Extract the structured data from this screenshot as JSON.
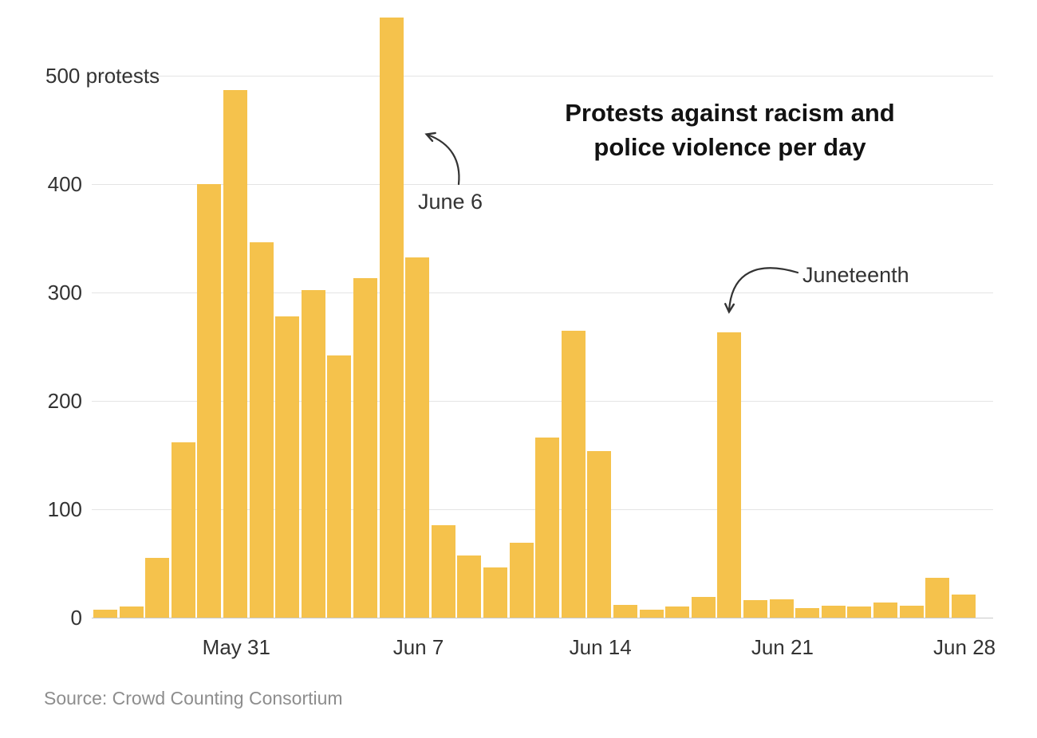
{
  "chart": {
    "title_line1": "Protests against racism and",
    "title_line2": "police violence per day"
  },
  "annotations": {
    "june6": "June 6",
    "juneteenth": "Juneteenth"
  },
  "source": "Source: Crowd Counting Consortium",
  "colors": {
    "bar": "#f5c24c",
    "gridline": "#e4e4e4",
    "baseline": "#c9c9c9",
    "text": "#333333",
    "title": "#121212",
    "source": "#8d8d8d"
  },
  "chart_data": {
    "type": "bar",
    "title": "Protests against racism and police violence per day",
    "xlabel": "",
    "ylabel": "protests",
    "x": [
      "May 26",
      "May 27",
      "May 28",
      "May 29",
      "May 30",
      "May 31",
      "Jun 1",
      "Jun 2",
      "Jun 3",
      "Jun 4",
      "Jun 5",
      "Jun 6",
      "Jun 7",
      "Jun 8",
      "Jun 9",
      "Jun 10",
      "Jun 11",
      "Jun 12",
      "Jun 13",
      "Jun 14",
      "Jun 15",
      "Jun 16",
      "Jun 17",
      "Jun 18",
      "Jun 19",
      "Jun 20",
      "Jun 21",
      "Jun 22",
      "Jun 23",
      "Jun 24",
      "Jun 25",
      "Jun 26",
      "Jun 27",
      "Jun 28"
    ],
    "values": [
      7,
      10,
      55,
      162,
      400,
      487,
      346,
      278,
      302,
      242,
      313,
      554,
      332,
      85,
      57,
      46,
      69,
      166,
      265,
      154,
      12,
      7,
      10,
      19,
      263,
      16,
      17,
      9,
      11,
      10,
      14,
      11,
      37,
      21
    ],
    "y_ticks": [
      0,
      100,
      200,
      300,
      400,
      500
    ],
    "y_tick_labels": [
      "0",
      "100",
      "200",
      "300",
      "400",
      "500 protests"
    ],
    "x_tick_labels": [
      {
        "index": 5,
        "label": "May 31"
      },
      {
        "index": 12,
        "label": "Jun 7"
      },
      {
        "index": 19,
        "label": "Jun 14"
      },
      {
        "index": 26,
        "label": "Jun 21"
      },
      {
        "index": 33,
        "label": "Jun 28"
      }
    ],
    "ylim": [
      0,
      570
    ],
    "grid": "horizontal",
    "legend": "none",
    "annotations": [
      {
        "label": "June 6",
        "x": "Jun 6",
        "value": 554
      },
      {
        "label": "Juneteenth",
        "x": "Jun 19",
        "value": 263
      }
    ]
  }
}
